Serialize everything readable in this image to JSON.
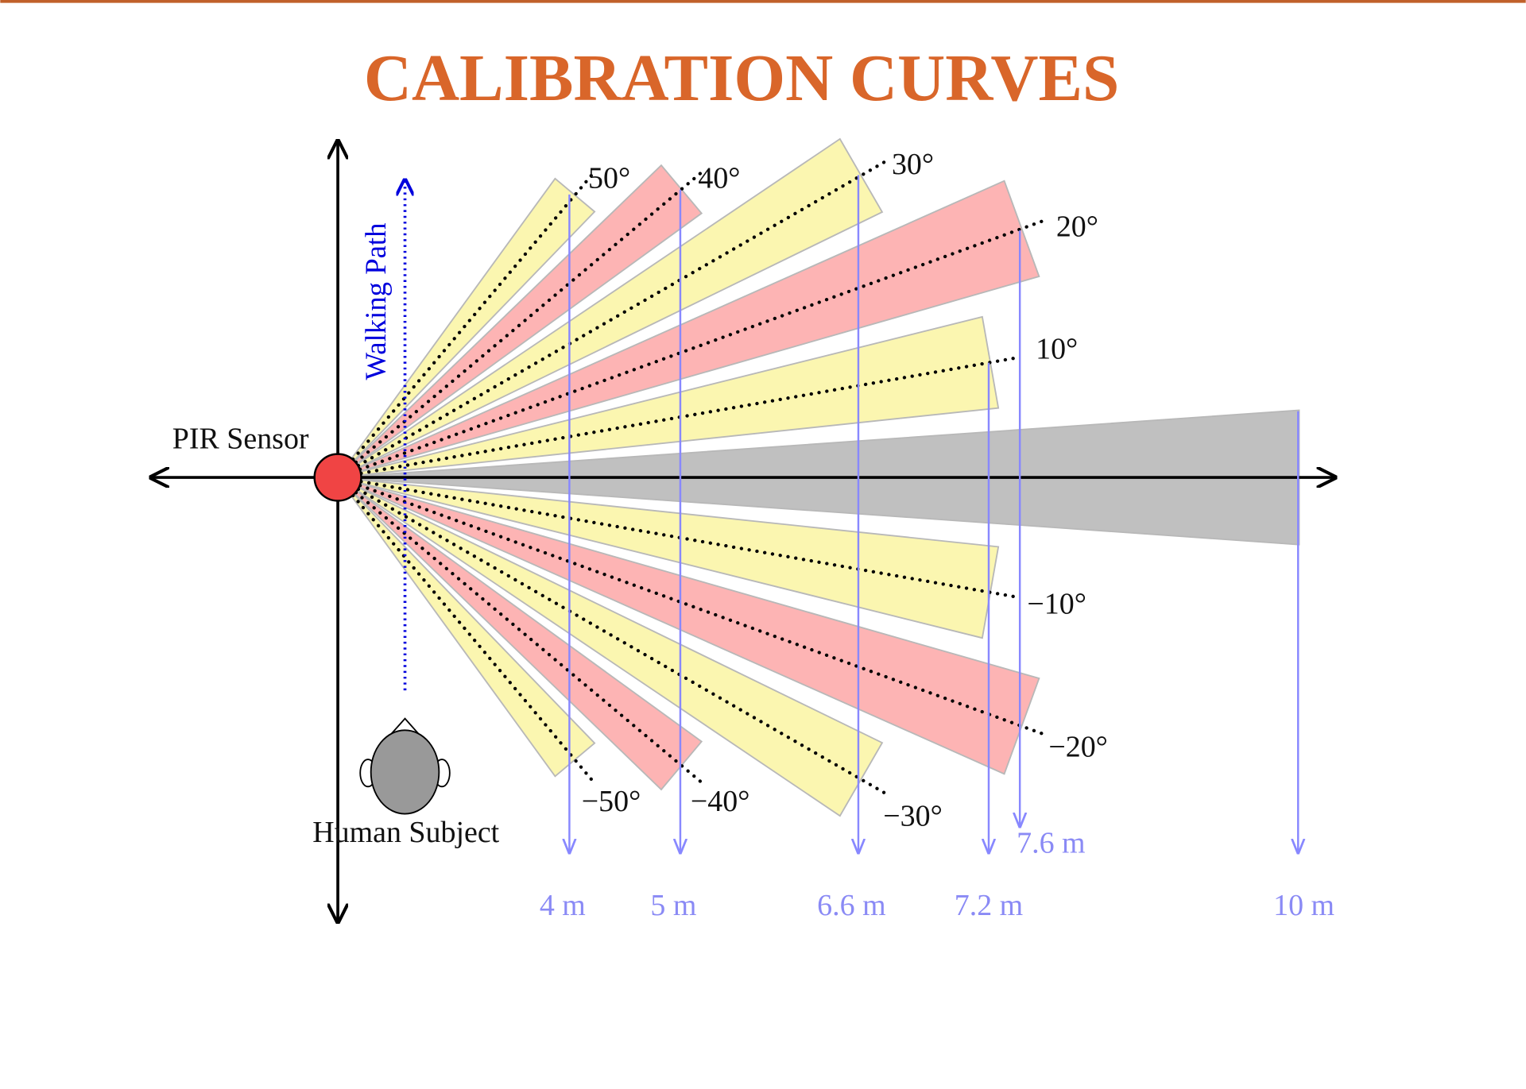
{
  "header": {
    "title": "CALIBRATION CURVES"
  },
  "labels": {
    "sensor": "PIR Sensor",
    "walking_path": "Walking Path",
    "subject": "Human Subject"
  },
  "angles": [
    "50°",
    "40°",
    "30°",
    "20°",
    "10°",
    "−10°",
    "−20°",
    "−30°",
    "−40°",
    "−50°"
  ],
  "distances": [
    "4 m",
    "5 m",
    "6.6 m",
    "7.2 m",
    "7.6 m",
    "10 m"
  ]
}
